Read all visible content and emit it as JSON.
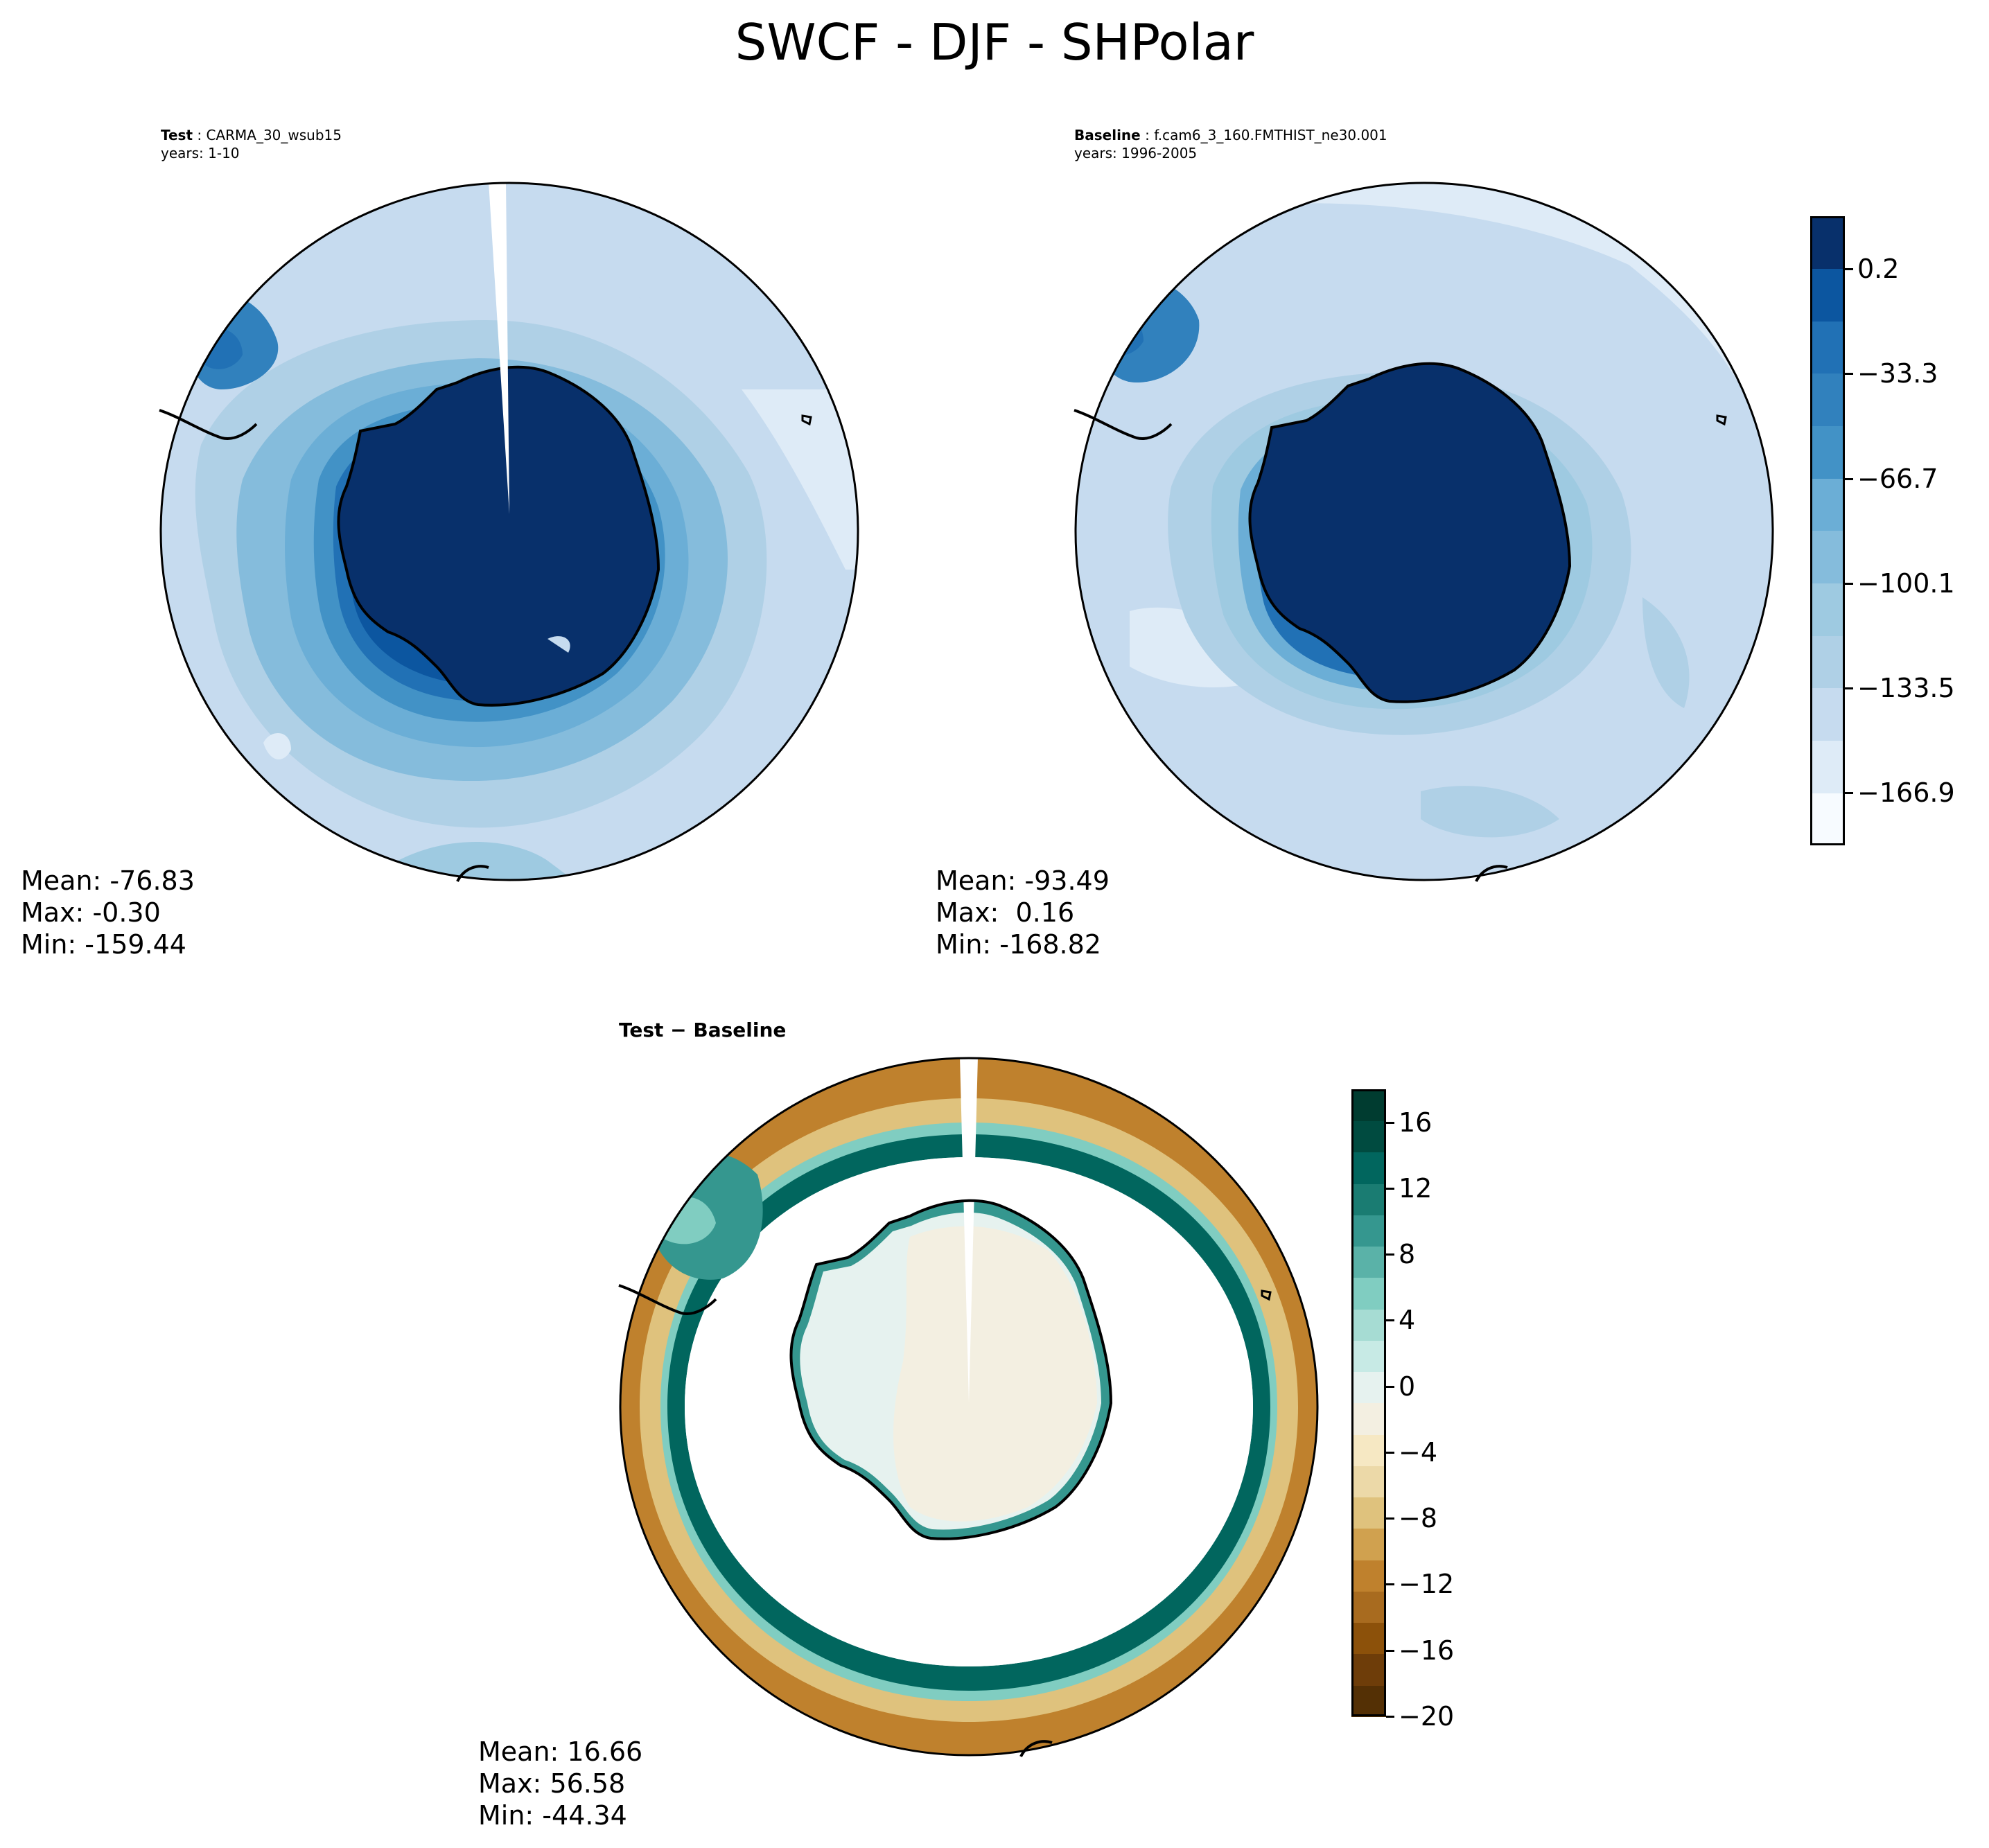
{
  "title": "SWCF - DJF - SHPolar",
  "panels": {
    "test": {
      "label": "Test",
      "case": "CARMA_30_wsub15",
      "years": "years: 1-10",
      "stats": {
        "mean": "Mean: -76.83",
        "max": "Max: -0.30",
        "min": "Min: -159.44"
      }
    },
    "baseline": {
      "label": "Baseline",
      "case": "f.cam6_3_160.FMTHIST_ne30.001",
      "years": "years: 1996-2005",
      "stats": {
        "mean": "Mean: -93.49",
        "max": "Max:  0.16",
        "min": "Min: -168.82"
      }
    },
    "diff": {
      "label": "Test − Baseline",
      "stats": {
        "mean": "Mean: 16.66",
        "max": "Max: 56.58",
        "min": "Min: -44.34"
      }
    }
  },
  "colorbar_main": {
    "tick_labels": [
      "0.2",
      "−33.3",
      "−66.7",
      "−100.1",
      "−133.5",
      "−166.9"
    ],
    "tick_values": [
      0.2,
      -33.3,
      -66.7,
      -100.1,
      -133.5,
      -166.9
    ],
    "range": [
      -183.6,
      16.9
    ],
    "colors": [
      "#f7fbff",
      "#deebf7",
      "#c6dbef",
      "#afd0e6",
      "#9ecae1",
      "#85bcdc",
      "#6baed6",
      "#4292c6",
      "#3181bd",
      "#2171b5",
      "#0c56a0",
      "#08306b"
    ]
  },
  "colorbar_diff": {
    "tick_labels": [
      "16",
      "12",
      "8",
      "4",
      "0",
      "−4",
      "−8",
      "−12",
      "−16",
      "−20"
    ],
    "tick_values": [
      16,
      12,
      8,
      4,
      0,
      -4,
      -8,
      -12,
      -16,
      -20
    ],
    "range": [
      -20,
      18
    ],
    "colors": [
      "#543005",
      "#6e3d09",
      "#8c510a",
      "#a86b1f",
      "#bf812d",
      "#d0a14f",
      "#dfc27d",
      "#ecd9a8",
      "#f6e8c3",
      "#f3efe1",
      "#e6f2ef",
      "#c7eae5",
      "#a6dcd3",
      "#80cdc1",
      "#5ab2a8",
      "#35978f",
      "#1a7c72",
      "#01665e",
      "#004b40",
      "#003c30"
    ]
  },
  "chart_data": [
    {
      "type": "heatmap",
      "title": "Test : CARMA_30_wsub15",
      "projection": "South Polar Stereographic",
      "variable": "SWCF",
      "season": "DJF",
      "mean": -76.83,
      "max": -0.3,
      "min": -159.44
    },
    {
      "type": "heatmap",
      "title": "Baseline : f.cam6_3_160.FMTHIST_ne30.001",
      "projection": "South Polar Stereographic",
      "variable": "SWCF",
      "season": "DJF",
      "mean": -93.49,
      "max": 0.16,
      "min": -168.82
    },
    {
      "type": "heatmap",
      "title": "Test − Baseline",
      "projection": "South Polar Stereographic",
      "variable": "SWCF",
      "season": "DJF",
      "mean": 16.66,
      "max": 56.58,
      "min": -44.34
    }
  ]
}
